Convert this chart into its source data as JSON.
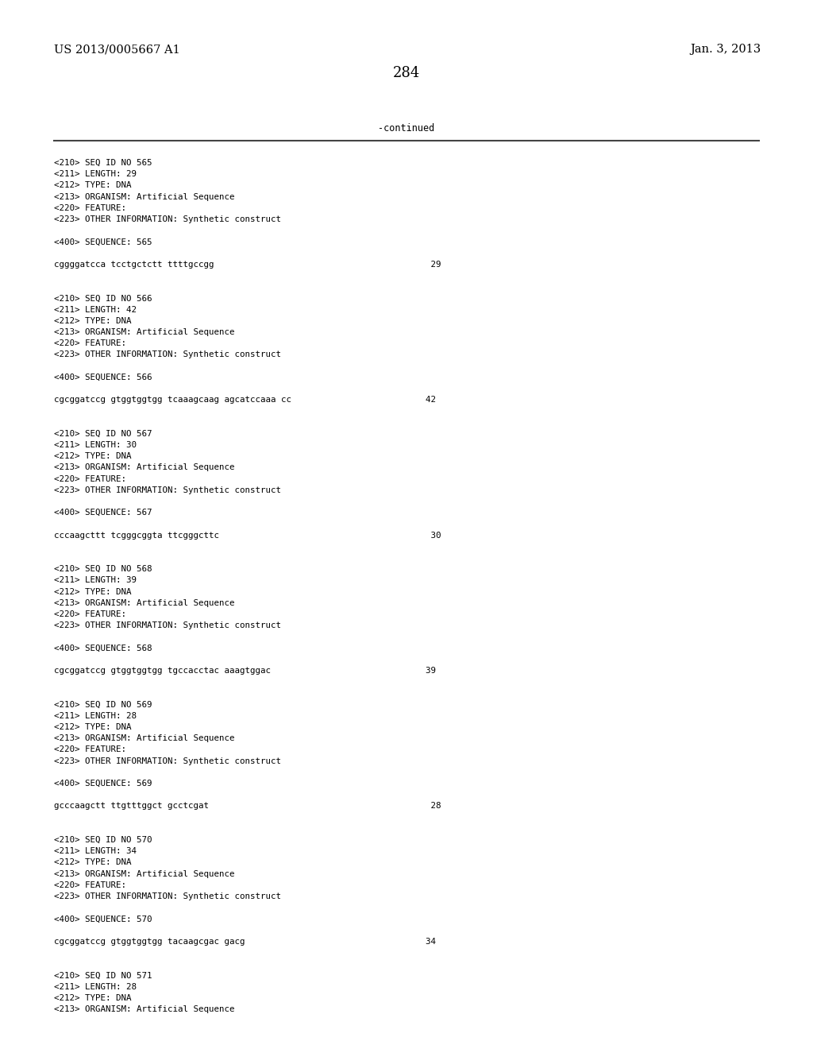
{
  "header_left": "US 2013/0005667 A1",
  "header_right": "Jan. 3, 2013",
  "page_number": "284",
  "continued_label": "-continued",
  "background_color": "#ffffff",
  "text_color": "#000000",
  "font_size_header": 10.5,
  "font_size_body": 8.5,
  "font_size_page": 12,
  "content_lines": [
    "<210> SEQ ID NO 565",
    "<211> LENGTH: 29",
    "<212> TYPE: DNA",
    "<213> ORGANISM: Artificial Sequence",
    "<220> FEATURE:",
    "<223> OTHER INFORMATION: Synthetic construct",
    "",
    "<400> SEQUENCE: 565",
    "",
    "cggggatcca tcctgctctt ttttgccgg                                          29",
    "",
    "",
    "<210> SEQ ID NO 566",
    "<211> LENGTH: 42",
    "<212> TYPE: DNA",
    "<213> ORGANISM: Artificial Sequence",
    "<220> FEATURE:",
    "<223> OTHER INFORMATION: Synthetic construct",
    "",
    "<400> SEQUENCE: 566",
    "",
    "cgcggatccg gtggtggtgg tcaaagcaag agcatccaaa cc                          42",
    "",
    "",
    "<210> SEQ ID NO 567",
    "<211> LENGTH: 30",
    "<212> TYPE: DNA",
    "<213> ORGANISM: Artificial Sequence",
    "<220> FEATURE:",
    "<223> OTHER INFORMATION: Synthetic construct",
    "",
    "<400> SEQUENCE: 567",
    "",
    "cccaagcttt tcgggcggta ttcgggcttc                                         30",
    "",
    "",
    "<210> SEQ ID NO 568",
    "<211> LENGTH: 39",
    "<212> TYPE: DNA",
    "<213> ORGANISM: Artificial Sequence",
    "<220> FEATURE:",
    "<223> OTHER INFORMATION: Synthetic construct",
    "",
    "<400> SEQUENCE: 568",
    "",
    "cgcggatccg gtggtggtgg tgccacctac aaagtggac                              39",
    "",
    "",
    "<210> SEQ ID NO 569",
    "<211> LENGTH: 28",
    "<212> TYPE: DNA",
    "<213> ORGANISM: Artificial Sequence",
    "<220> FEATURE:",
    "<223> OTHER INFORMATION: Synthetic construct",
    "",
    "<400> SEQUENCE: 569",
    "",
    "gcccaagctt ttgtttggct gcctcgat                                           28",
    "",
    "",
    "<210> SEQ ID NO 570",
    "<211> LENGTH: 34",
    "<212> TYPE: DNA",
    "<213> ORGANISM: Artificial Sequence",
    "<220> FEATURE:",
    "<223> OTHER INFORMATION: Synthetic construct",
    "",
    "<400> SEQUENCE: 570",
    "",
    "cgcggatccg gtggtggtgg tacaagcgac gacg                                   34",
    "",
    "",
    "<210> SEQ ID NO 571",
    "<211> LENGTH: 28",
    "<212> TYPE: DNA",
    "<213> ORGANISM: Artificial Sequence"
  ]
}
